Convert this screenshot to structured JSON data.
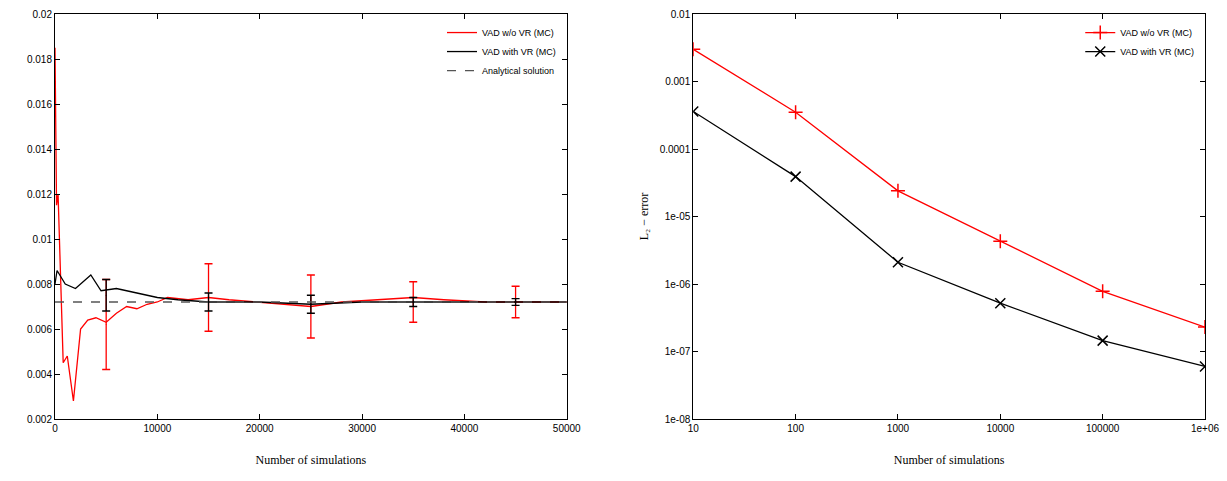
{
  "chart_data": [
    {
      "type": "line",
      "x_label": "Number of simulations",
      "xlim": [
        0,
        50000
      ],
      "xticks": [
        0,
        10000,
        20000,
        30000,
        40000,
        50000
      ],
      "ylim": [
        0.002,
        0.02
      ],
      "yticks": [
        0.002,
        0.004,
        0.006,
        0.008,
        0.01,
        0.012,
        0.014,
        0.016,
        0.018,
        0.02
      ],
      "grid": false,
      "legend": "top-right",
      "series": [
        {
          "name": "VAD w/o VR (MC)",
          "color": "#ff0000",
          "line_style": "solid",
          "x": [
            0,
            150,
            300,
            500,
            800,
            1200,
            1800,
            2500,
            3200,
            4000,
            5000,
            6000,
            7000,
            8000,
            9000,
            10000,
            11000,
            13000,
            15000,
            17000,
            20000,
            23000,
            25000,
            28000,
            32000,
            35000,
            38000,
            42000,
            45000,
            48000,
            50000
          ],
          "values": [
            0.0185,
            0.0115,
            0.012,
            0.0085,
            0.0045,
            0.0048,
            0.0028,
            0.006,
            0.0064,
            0.0065,
            0.0063,
            0.0067,
            0.007,
            0.0069,
            0.0071,
            0.0072,
            0.0074,
            0.0073,
            0.0074,
            0.0073,
            0.0072,
            0.0071,
            0.007,
            0.0072,
            0.0073,
            0.0074,
            0.0073,
            0.0072,
            0.0072,
            0.0072,
            0.0072
          ],
          "error_bars": {
            "x": [
              5000,
              15000,
              25000,
              35000,
              45000
            ],
            "y": [
              0.0062,
              0.0074,
              0.007,
              0.0072,
              0.0072
            ],
            "plus": [
              0.002,
              0.0015,
              0.0014,
              0.0009,
              0.0007
            ],
            "minus": [
              0.002,
              0.0015,
              0.0014,
              0.0009,
              0.0007
            ]
          }
        },
        {
          "name": "VAD with VR (MC)",
          "color": "#000000",
          "line_style": "solid",
          "x": [
            0,
            200,
            600,
            1000,
            2000,
            2800,
            3500,
            4500,
            6000,
            8000,
            10000,
            12000,
            15000,
            20000,
            25000,
            30000,
            35000,
            40000,
            45000,
            50000
          ],
          "values": [
            0.008,
            0.0086,
            0.0083,
            0.008,
            0.0078,
            0.0081,
            0.0084,
            0.0077,
            0.0078,
            0.0076,
            0.0074,
            0.0073,
            0.0072,
            0.0072,
            0.0071,
            0.0072,
            0.0072,
            0.0072,
            0.0072,
            0.0072
          ],
          "error_bars": {
            "x": [
              5000,
              15000,
              25000,
              35000,
              45000
            ],
            "y": [
              0.0075,
              0.0072,
              0.0071,
              0.0072,
              0.0072
            ],
            "plus": [
              0.0007,
              0.0004,
              0.0004,
              0.0002,
              0.00015
            ],
            "minus": [
              0.0007,
              0.0004,
              0.0004,
              0.0002,
              0.00015
            ]
          }
        },
        {
          "name": "Analytical solution",
          "color": "#555555",
          "line_style": "dashed",
          "x": [
            0,
            50000
          ],
          "values": [
            0.0072,
            0.0072
          ]
        }
      ]
    },
    {
      "type": "line",
      "log": true,
      "x_label": "Number of simulations",
      "y_label": "L₂ − error",
      "xlim": [
        10,
        1000000
      ],
      "xticks": [
        10,
        100,
        1000,
        10000,
        100000,
        {
          "value": 1000000,
          "label": "1e+06"
        }
      ],
      "ylim": [
        1e-08,
        0.01
      ],
      "yticks": [
        {
          "value": 1e-08,
          "label": "1e-08"
        },
        {
          "value": 1e-07,
          "label": "1e-07"
        },
        {
          "value": 1e-06,
          "label": "1e-06"
        },
        {
          "value": 1e-05,
          "label": "1e-05"
        },
        0.0001,
        0.001,
        0.01
      ],
      "grid": false,
      "legend": "top-right",
      "series": [
        {
          "name": "VAD w/o VR (MC)",
          "color": "#ff0000",
          "marker": "cross",
          "line_style": "solid",
          "x": [
            10,
            100,
            1000,
            10000,
            100000,
            1000000
          ],
          "values": [
            0.003,
            0.00035,
            2.4e-05,
            4.3e-06,
            7.8e-07,
            2.3e-07
          ]
        },
        {
          "name": "VAD with VR (MC)",
          "color": "#000000",
          "marker": "x",
          "line_style": "solid",
          "x": [
            10,
            100,
            1000,
            10000,
            100000,
            1000000
          ],
          "values": [
            0.00036,
            3.9e-05,
            2.1e-06,
            5.2e-07,
            1.45e-07,
            6e-08
          ]
        }
      ]
    }
  ]
}
